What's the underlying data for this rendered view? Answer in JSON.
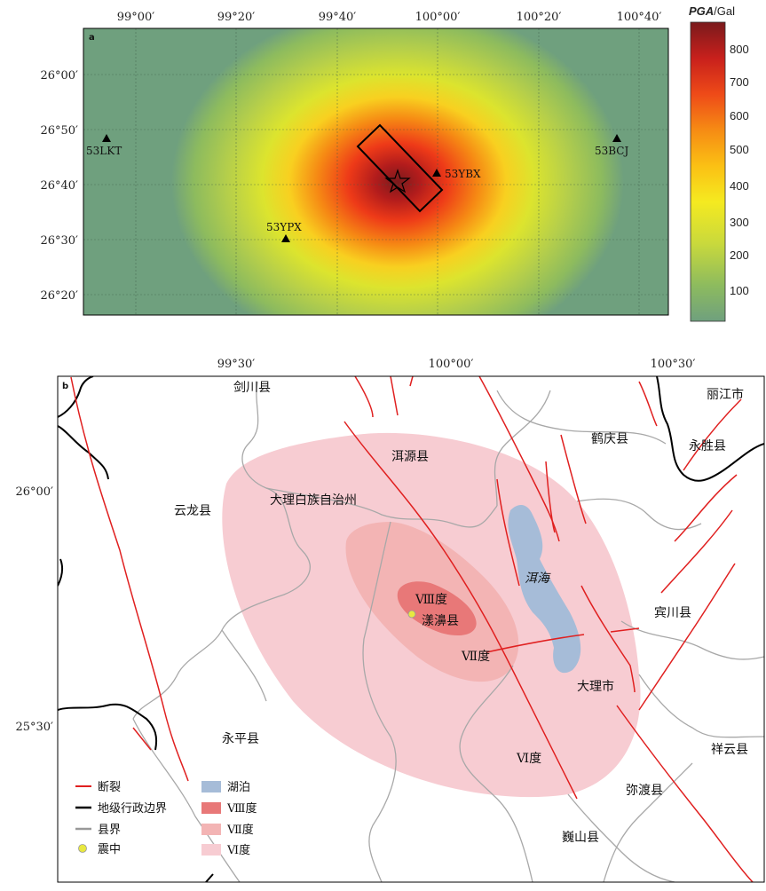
{
  "panel_a": {
    "letter": "a",
    "x_ticks": [
      "99°00′",
      "99°20′",
      "99°40′",
      "100°00′",
      "100°20′",
      "100°40′"
    ],
    "y_ticks": [
      "26°00′",
      "26°50′",
      "26°40′",
      "26°30′",
      "26°20′"
    ],
    "stations": [
      {
        "code": "53LKT"
      },
      {
        "code": "53YBX"
      },
      {
        "code": "53YPX"
      },
      {
        "code": "53BCJ"
      }
    ],
    "colorbar": {
      "title_italic": "PGA",
      "title_unit": "/Gal",
      "ticks": [
        "800",
        "700",
        "600",
        "500",
        "400",
        "300",
        "200",
        "100"
      ],
      "range": [
        0,
        870
      ],
      "colors": [
        "#6fa07e",
        "#8dbb5e",
        "#c9d93c",
        "#f5ea20",
        "#fbc014",
        "#f68b14",
        "#ee4a18",
        "#c8201c",
        "#7a1a1c"
      ]
    }
  },
  "panel_b": {
    "letter": "b",
    "x_ticks": [
      "99°30′",
      "100°00′",
      "100°30′"
    ],
    "y_ticks": [
      "26°00′",
      "25°30′"
    ],
    "places": {
      "jianchuan": "剑川县",
      "lijiang": "丽江市",
      "eryuan": "洱源县",
      "heqing": "鹤庆县",
      "yongsheng": "永胜县",
      "dali_zhou": "大理白族自治州",
      "yunlong": "云龙县",
      "binchuan": "宾川县",
      "yangbi": "漾濞县",
      "dali_shi": "大理市",
      "yongping": "永平县",
      "xiangyun": "祥云县",
      "midu": "弥渡县",
      "weishan": "巍山县"
    },
    "lake_name": "洱海",
    "intensity_labels": {
      "viii": "Ⅷ度",
      "vii": "Ⅶ度",
      "vi": "Ⅵ度"
    },
    "legend": [
      {
        "label": "断裂",
        "color": "#e02020"
      },
      {
        "label": "地级行政边界",
        "color": "#000000"
      },
      {
        "label": "县界",
        "color": "#999999"
      },
      {
        "label": "震中",
        "color": "#e8e840"
      },
      {
        "label": "湖泊",
        "color": "#a6bcd8"
      },
      {
        "label": "Ⅷ度",
        "color": "#e87878"
      },
      {
        "label": "Ⅶ度",
        "color": "#f3b4b4"
      },
      {
        "label": "Ⅵ度",
        "color": "#f7ccd2"
      }
    ]
  }
}
